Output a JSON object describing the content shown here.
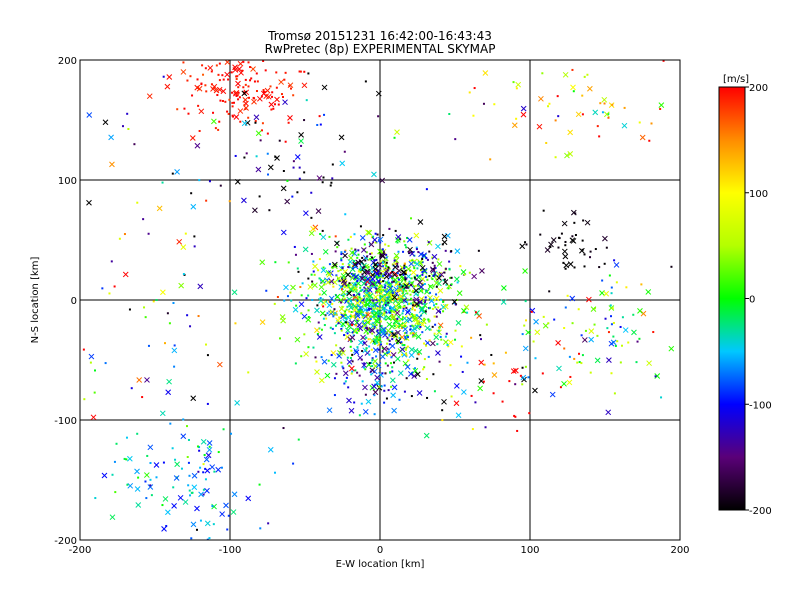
{
  "chart_data": {
    "type": "scatter",
    "title": "Tromsø 20151231 16:42:00-16:43:43",
    "subtitle": "RwPretec (8p) EXPERIMENTAL SKYMAP",
    "xlabel": "E-W location [km]",
    "ylabel": "N-S location [km]",
    "xlim": [
      -200,
      200
    ],
    "ylim": [
      -200,
      200
    ],
    "xticks": [
      "-200",
      "-100",
      "0",
      "100",
      "200"
    ],
    "yticks": [
      "-200",
      "-100",
      "0",
      "100",
      "200"
    ],
    "grid": true,
    "colorbar": {
      "unit": "[m/s]",
      "range": [
        -200,
        200
      ],
      "ticks": [
        "200",
        "100",
        "0",
        "-100",
        "-200"
      ],
      "colormap": "rainbow: black (-200), purple, blue (-100), cyan, green (0), yellow (100), orange, red (200)"
    },
    "markers": [
      "x",
      "dot"
    ],
    "clusters": [
      {
        "x": 0,
        "y": 0,
        "spread_x": 25,
        "spread_y": 25,
        "count": 1100,
        "velocity": 0,
        "velocity_spread": 70
      },
      {
        "x": 10,
        "y": 25,
        "spread_x": 22,
        "spread_y": 14,
        "count": 180,
        "velocity": -150,
        "velocity_spread": 50
      },
      {
        "x": -95,
        "y": 175,
        "spread_x": 22,
        "spread_y": 16,
        "count": 160,
        "velocity": 195,
        "velocity_spread": 10
      },
      {
        "x": -130,
        "y": -150,
        "spread_x": 25,
        "spread_y": 25,
        "count": 110,
        "velocity": -60,
        "velocity_spread": 40
      },
      {
        "x": 0,
        "y": -55,
        "spread_x": 18,
        "spread_y": 18,
        "count": 140,
        "velocity": -90,
        "velocity_spread": 60
      },
      {
        "x": 125,
        "y": 50,
        "spread_x": 15,
        "spread_y": 15,
        "count": 45,
        "velocity": -200,
        "velocity_spread": 10
      },
      {
        "x": 150,
        "y": -20,
        "spread_x": 30,
        "spread_y": 25,
        "count": 90,
        "velocity": 10,
        "velocity_spread": 80
      },
      {
        "x": 130,
        "y": 160,
        "spread_x": 40,
        "spread_y": 25,
        "count": 60,
        "velocity": 100,
        "velocity_spread": 90
      },
      {
        "x": -60,
        "y": 110,
        "spread_x": 45,
        "spread_y": 40,
        "count": 90,
        "velocity": -150,
        "velocity_spread": 100
      },
      {
        "x": -150,
        "y": 0,
        "spread_x": 40,
        "spread_y": 100,
        "count": 90,
        "velocity": 0,
        "velocity_spread": 150
      },
      {
        "x": 80,
        "y": -60,
        "spread_x": 40,
        "spread_y": 30,
        "count": 80,
        "velocity": 0,
        "velocity_spread": 200
      }
    ]
  }
}
